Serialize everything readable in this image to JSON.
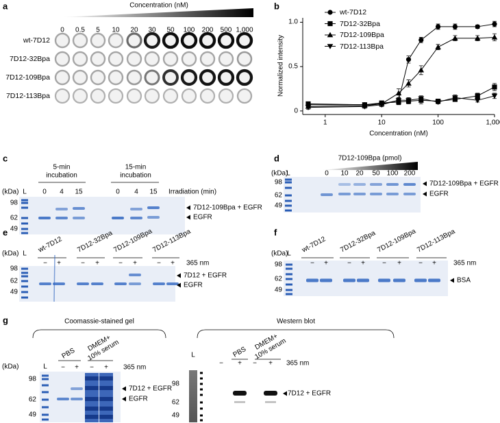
{
  "panels": {
    "a": {
      "label": "a",
      "wedge_title": "Concentration (nM)",
      "columns": [
        "0",
        "0.5",
        "5",
        "10",
        "20",
        "30",
        "50",
        "100",
        "200",
        "500",
        "1,000"
      ],
      "rows": [
        "wt-7D12",
        "7D12-32Bpa",
        "7D12-109Bpa",
        "7D12-113Bpa"
      ]
    },
    "c": {
      "label": "c",
      "groups": [
        "5-min incubation",
        "15-min incubation"
      ],
      "axis_label": "Irradiation (min)",
      "lanes": [
        "0",
        "4",
        "15",
        "0",
        "4",
        "15"
      ],
      "mw_unit": "(kDa)",
      "ladder": "L",
      "mw": [
        "98",
        "62",
        "49"
      ],
      "bands": [
        "7D12-109Bpa + EGFR",
        "EGFR"
      ]
    },
    "d": {
      "label": "d",
      "title": "7D12-109Bpa (pmol)",
      "lanes": [
        "0",
        "10",
        "20",
        "50",
        "100",
        "200"
      ],
      "mw_unit": "(kDa)",
      "ladder": "L",
      "mw": [
        "98",
        "62",
        "49"
      ],
      "bands": [
        "7D12-109Bpa + EGFR",
        "EGFR"
      ]
    },
    "e": {
      "label": "e",
      "groups": [
        "wt-7D12",
        "7D12-32Bpa",
        "7D12-109Bpa",
        "7D12-113Bpa"
      ],
      "lanes": [
        "−",
        "+",
        "−",
        "+",
        "−",
        "+",
        "−",
        "+"
      ],
      "condition": "365 nm",
      "mw_unit": "(kDa)",
      "ladder": "L",
      "mw": [
        "98",
        "62",
        "49"
      ],
      "bands": [
        "7D12 + EGFR",
        "EGFR"
      ]
    },
    "f": {
      "label": "f",
      "groups": [
        "wt-7D12",
        "7D12-32Bpa",
        "7D12-109Bpa",
        "7D12-113Bpa"
      ],
      "lanes": [
        "−",
        "+",
        "−",
        "+",
        "−",
        "+",
        "−",
        "+"
      ],
      "condition": "365 nm",
      "mw_unit": "(kDa)",
      "ladder": "L",
      "mw": [
        "98",
        "62",
        "49"
      ],
      "bands": [
        "BSA"
      ]
    },
    "g": {
      "label": "g",
      "gel": {
        "title": "Coomassie-stained gel",
        "groups": [
          "PBS",
          "DMEM+ 10% serum"
        ],
        "lanes": [
          "−",
          "+",
          "−",
          "+"
        ],
        "condition": "365 nm",
        "mw_unit": "(kDa)",
        "ladder": "L",
        "mw": [
          "98",
          "62",
          "49"
        ],
        "bands": [
          "7D12 + EGFR",
          "EGFR"
        ]
      },
      "blot": {
        "title": "Western blot",
        "ladder": "L",
        "groups": [
          "PBS",
          "DMEM+ 10% serum"
        ],
        "lanes": [
          "−",
          "+",
          "−",
          "+"
        ],
        "condition": "365 nm",
        "mw": [
          "98",
          "62",
          "49"
        ],
        "bands": [
          "7D12 + EGFR"
        ]
      }
    }
  },
  "chart_data": {
    "type": "line",
    "label": "b",
    "xlabel": "Concentration (nM)",
    "ylabel": "Normalized intensity",
    "x": [
      0.5,
      5,
      10,
      20,
      30,
      50,
      100,
      200,
      500,
      1000
    ],
    "xlim": [
      0.4,
      1000
    ],
    "xticks": [
      1,
      10,
      100,
      {
        "value": 1000,
        "label": "1,000"
      }
    ],
    "log_x": true,
    "ylim": [
      -0.04,
      1.05
    ],
    "yticks": [
      0,
      0.5,
      {
        "value": 1,
        "label": "1.0"
      }
    ],
    "series": [
      {
        "name": "wt-7D12",
        "marker": "circle",
        "color": "#000000",
        "values": [
          0.07,
          0.07,
          0.08,
          0.12,
          0.58,
          0.8,
          0.95,
          0.95,
          0.95,
          0.98
        ],
        "errors": [
          0.03,
          0.02,
          0.02,
          0.03,
          0.04,
          0.03,
          0.03,
          0.03,
          0.02,
          0.03
        ]
      },
      {
        "name": "7D12-32Bpa",
        "marker": "square",
        "color": "#000000",
        "values": [
          0.08,
          0.07,
          0.09,
          0.1,
          0.11,
          0.12,
          0.11,
          0.13,
          0.17,
          0.27
        ],
        "errors": [
          0.02,
          0.02,
          0.02,
          0.03,
          0.03,
          0.04,
          0.02,
          0.02,
          0.03,
          0.04
        ]
      },
      {
        "name": "7D12-109Bpa",
        "marker": "triangle-up",
        "color": "#000000",
        "values": [
          0.05,
          0.06,
          0.08,
          0.2,
          0.31,
          0.46,
          0.72,
          0.82,
          0.82,
          0.83
        ],
        "errors": [
          0.02,
          0.02,
          0.03,
          0.05,
          0.04,
          0.05,
          0.03,
          0.03,
          0.03,
          0.04
        ]
      },
      {
        "name": "7D12-113Bpa",
        "marker": "triangle-down",
        "color": "#000000",
        "values": [
          0.04,
          0.05,
          0.07,
          0.12,
          0.12,
          0.14,
          0.1,
          0.15,
          0.12,
          0.17
        ],
        "errors": [
          0.02,
          0.02,
          0.02,
          0.03,
          0.03,
          0.03,
          0.02,
          0.03,
          0.02,
          0.03
        ]
      }
    ]
  }
}
